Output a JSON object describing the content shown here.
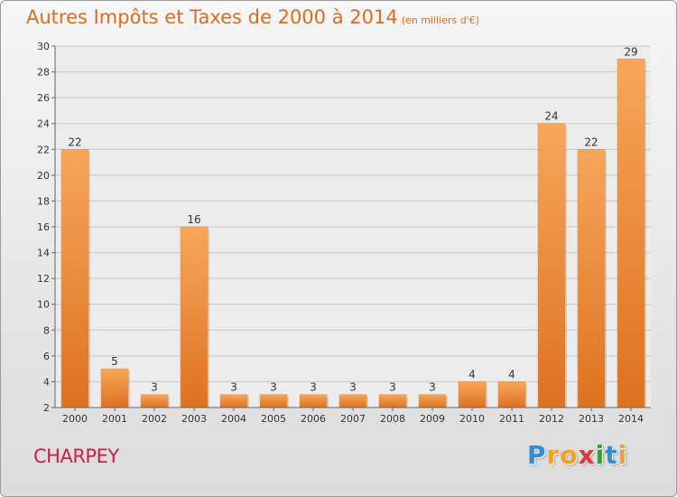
{
  "header": {
    "title": "Autres Impôts et Taxes de 2000 à 2014",
    "subtitle": "(en milliers d'€)"
  },
  "commune": "CHARPEY",
  "logo": {
    "text": "Proxiti",
    "letters": [
      {
        "ch": "P",
        "color": "#2f8fd4"
      },
      {
        "ch": "r",
        "color": "#f2a22b"
      },
      {
        "ch": "o",
        "color": "#f2a22b"
      },
      {
        "ch": "x",
        "color": "#d73a3a"
      },
      {
        "ch": "i",
        "color": "#3a9c3a"
      },
      {
        "ch": "t",
        "color": "#2f8fd4"
      },
      {
        "ch": "i",
        "color": "#f2a22b"
      }
    ]
  },
  "colors": {
    "title": "#e06a1c",
    "commune": "#cc1f45",
    "bar_light": "#f7a65a",
    "bar_dark": "#dd7220",
    "grid": "#c8c8c8"
  },
  "chart_data": {
    "type": "bar",
    "categories": [
      "2000",
      "2001",
      "2002",
      "2003",
      "2004",
      "2005",
      "2006",
      "2007",
      "2008",
      "2009",
      "2010",
      "2011",
      "2012",
      "2013",
      "2014"
    ],
    "values": [
      22,
      5,
      3,
      16,
      3,
      3,
      3,
      3,
      3,
      3,
      4,
      4,
      24,
      22,
      29
    ],
    "data_labels": [
      "22",
      "5",
      "3",
      "16",
      "3",
      "3",
      "3",
      "3",
      "3",
      "3",
      "4",
      "4",
      "24",
      "22",
      "29"
    ],
    "yticks": [
      2,
      4,
      6,
      8,
      10,
      12,
      14,
      16,
      18,
      20,
      22,
      24,
      26,
      28,
      30
    ],
    "ylim": [
      2,
      30
    ],
    "grid": true,
    "legend": "none"
  }
}
